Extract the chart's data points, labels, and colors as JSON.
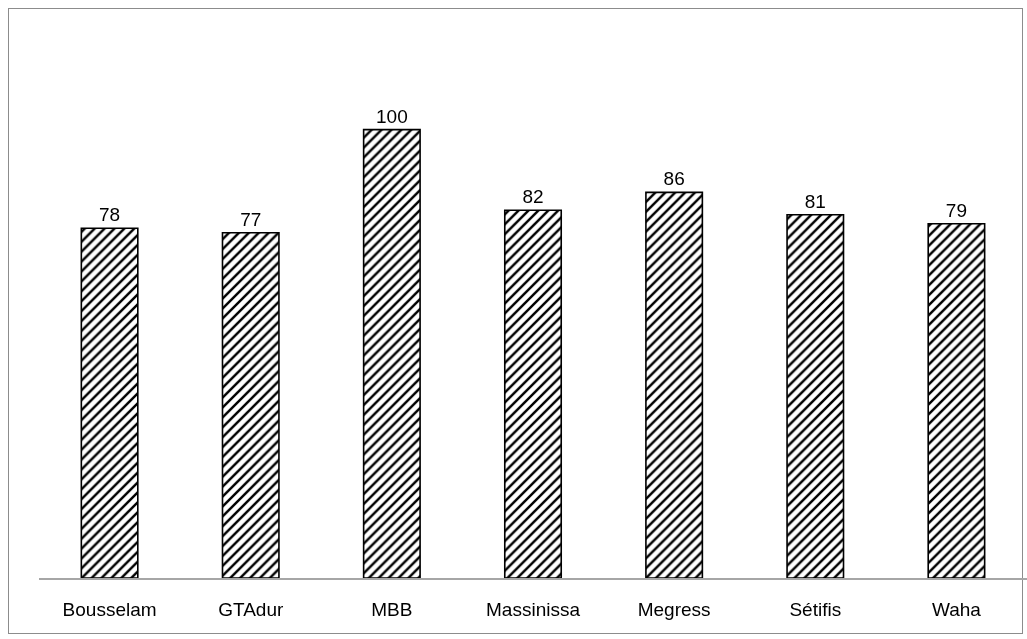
{
  "chart_data": {
    "type": "bar",
    "categories": [
      "Bousselam",
      "GTAdur",
      "MBB",
      "Massinissa",
      "Megress",
      "Sétifis",
      "Waha"
    ],
    "values": [
      78,
      77,
      100,
      82,
      86,
      81,
      79
    ],
    "color": "#000000",
    "data_labels": true,
    "tick_labels": "x",
    "grid": false
  }
}
